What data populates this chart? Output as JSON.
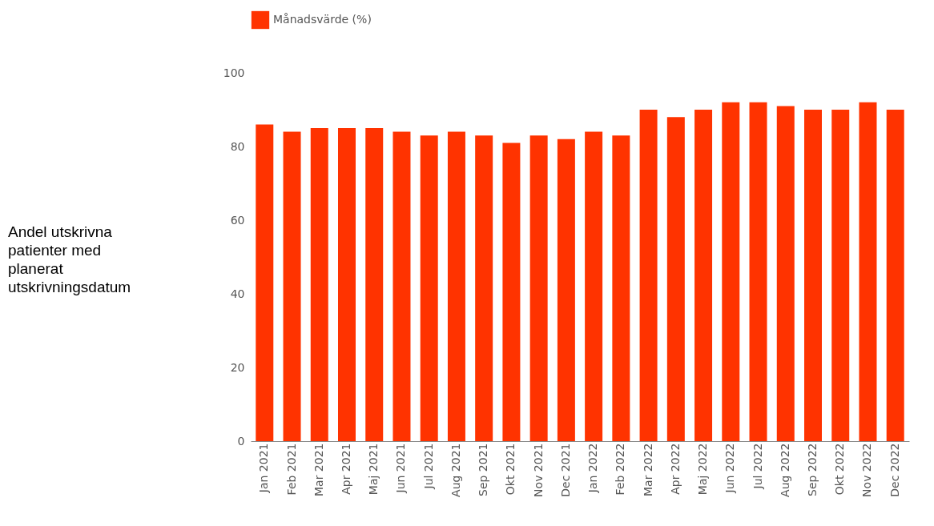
{
  "chart_data": {
    "type": "bar",
    "annotations": [
      "Andel utskrivna patienter med planerat utskrivningsdatum"
    ],
    "categories": [
      "Jan 2021",
      "Feb 2021",
      "Mar 2021",
      "Apr 2021",
      "Maj 2021",
      "Jun 2021",
      "Jul 2021",
      "Aug 2021",
      "Sep 2021",
      "Okt 2021",
      "Nov 2021",
      "Dec 2021",
      "Jan 2022",
      "Feb 2022",
      "Mar 2022",
      "Apr 2022",
      "Maj 2022",
      "Jun 2022",
      "Jul 2022",
      "Aug 2022",
      "Sep 2022",
      "Okt 2022",
      "Nov 2022",
      "Dec 2022"
    ],
    "series": [
      {
        "name": "Månadsvärde (%)",
        "color": "#ff3300",
        "values": [
          86,
          84,
          85,
          85,
          85,
          84,
          83,
          84,
          83,
          81,
          83,
          82,
          84,
          83,
          90,
          88,
          90,
          92,
          92,
          91,
          90,
          90,
          92,
          90
        ]
      }
    ],
    "ylim": [
      0,
      100
    ],
    "yticks": [
      0,
      20,
      40,
      60,
      80,
      100
    ],
    "grid": false,
    "legend": "top left"
  }
}
